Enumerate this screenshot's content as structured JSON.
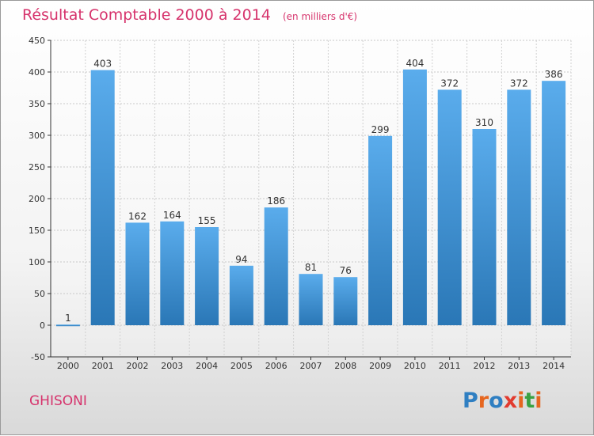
{
  "header": {
    "title": "Résultat Comptable 2000 à 2014",
    "subtitle": "(en milliers d'€)"
  },
  "footer": {
    "commune": "GHISONI",
    "logo": "Proxiti"
  },
  "colors": {
    "accent": "#d6336c",
    "bar_top": "#5aacec",
    "bar_bottom": "#2a77b6",
    "logo_letters": [
      "#2f7fc2",
      "#e6661f",
      "#2f7fc2",
      "#e23b2f",
      "#e6661f",
      "#3aa142",
      "#e6661f"
    ]
  },
  "chart_data": {
    "type": "bar",
    "title": "Résultat Comptable 2000 à 2014",
    "subtitle": "(en milliers d'€)",
    "categories": [
      "2000",
      "2001",
      "2002",
      "2003",
      "2004",
      "2005",
      "2006",
      "2007",
      "2008",
      "2009",
      "2010",
      "2011",
      "2012",
      "2013",
      "2014"
    ],
    "values": [
      1,
      403,
      162,
      164,
      155,
      94,
      186,
      81,
      76,
      299,
      404,
      372,
      310,
      372,
      386
    ],
    "data_labels": [
      "1",
      "403",
      "162",
      "164",
      "155",
      "94",
      "186",
      "81",
      "76",
      "299",
      "404",
      "372",
      "310",
      "372",
      "386"
    ],
    "ylim": [
      -50,
      450
    ],
    "yticks": [
      -50,
      0,
      50,
      100,
      150,
      200,
      250,
      300,
      350,
      400,
      450
    ],
    "ytick_labels": [
      "-50",
      "0",
      "50",
      "100",
      "150",
      "200",
      "250",
      "300",
      "350",
      "400",
      "450"
    ],
    "grid": true,
    "legend": "none"
  }
}
